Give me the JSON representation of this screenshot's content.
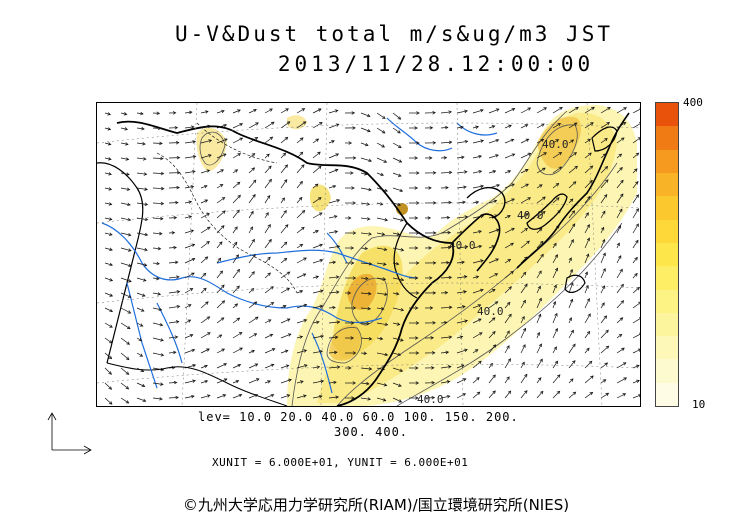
{
  "title": {
    "line1": "U-V&Dust total m/s&ug/m3 JST",
    "line2": "2013/11/28.12:00:00"
  },
  "colorbar": {
    "max_label": "400",
    "min_label": "10",
    "colors": [
      "#e8520a",
      "#f07a14",
      "#f59a1e",
      "#f8b326",
      "#fbc82e",
      "#fdd838",
      "#fde64a",
      "#fdee66",
      "#fdf284",
      "#fdf59e",
      "#fef8b8",
      "#fefad0",
      "#fffce6"
    ]
  },
  "levels": {
    "line1": "lev= 10.0 20.0 40.0 60.0 100. 150. 200.",
    "line2": "300. 400."
  },
  "units": "XUNIT = 6.000E+01, YUNIT = 6.000E+01",
  "credit": "©九州大学応用力学研究所(RIAM)/国立環境研究所(NIES)",
  "map": {
    "contour_labels": [
      "40.0",
      "40.0",
      "40.0",
      "40.0",
      "40.0"
    ],
    "colors": {
      "land_outline": "#000000",
      "river": "#1f6fdc",
      "dust_light": "#fdf3a6",
      "dust_mid": "#f5dc5a",
      "dust_high": "#eaa72a"
    }
  }
}
